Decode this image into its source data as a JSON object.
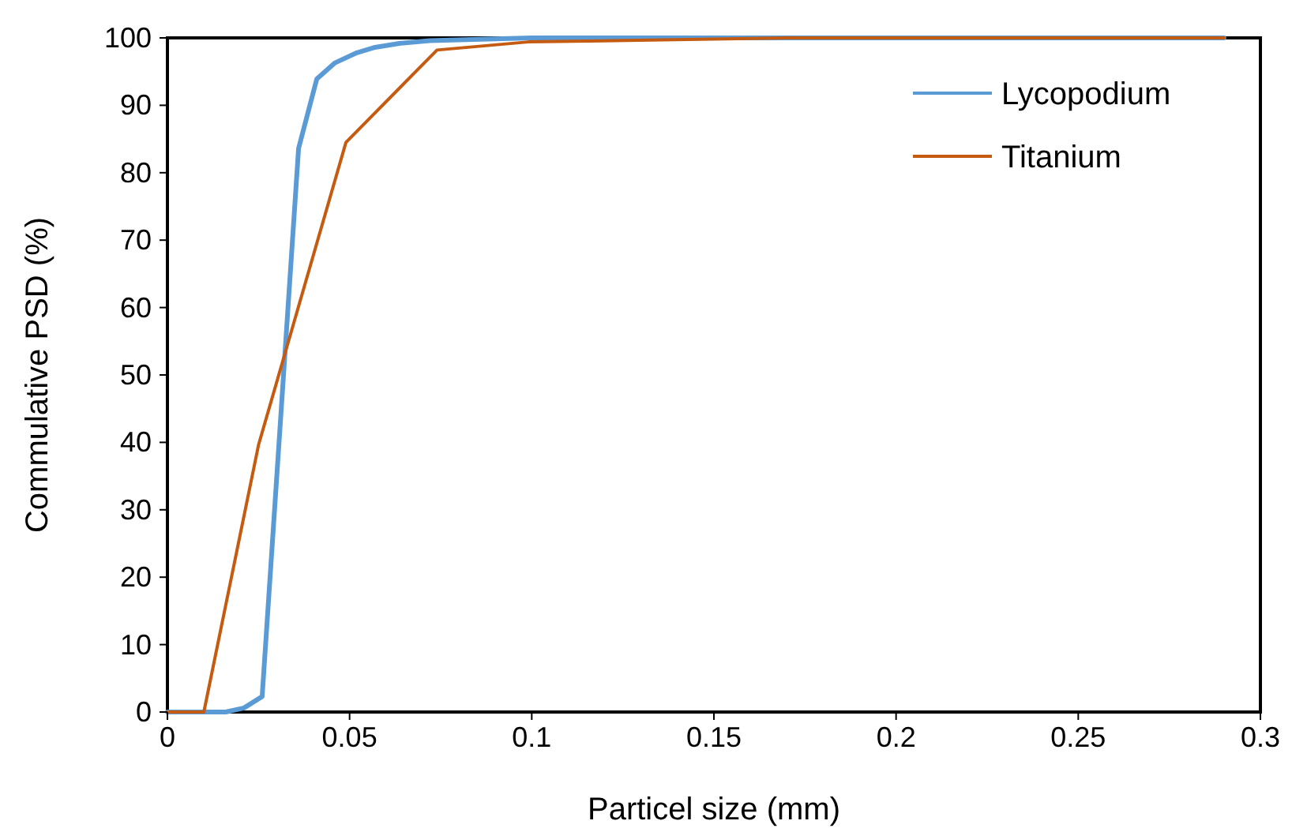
{
  "chart_data": {
    "type": "line",
    "xlabel": "Particel size (mm)",
    "ylabel": "Commulative PSD (%)",
    "xlim": [
      0,
      0.3
    ],
    "ylim": [
      0,
      100
    ],
    "xticks": [
      0,
      0.05,
      0.1,
      0.15,
      0.2,
      0.25,
      0.3
    ],
    "yticks": [
      0,
      10,
      20,
      30,
      40,
      50,
      60,
      70,
      80,
      90,
      100
    ],
    "grid": false,
    "legend": "top right",
    "marker": "none",
    "line_style": "solid",
    "series": [
      {
        "name": "Lycopodium",
        "color": "#5b9bd5",
        "x": [
          0,
          0.016,
          0.021,
          0.026,
          0.036,
          0.041,
          0.046,
          0.052,
          0.057,
          0.064,
          0.072,
          0.1,
          0.29
        ],
        "values": [
          0,
          0,
          0.6,
          2.3,
          83.6,
          93.9,
          96.3,
          97.8,
          98.6,
          99.2,
          99.6,
          100,
          100
        ]
      },
      {
        "name": "Titanium",
        "color": "#c55a11",
        "x": [
          0,
          0.01,
          0.025,
          0.049,
          0.074,
          0.099,
          0.17,
          0.29
        ],
        "values": [
          0,
          0,
          39.6,
          84.5,
          98.2,
          99.4,
          100,
          100
        ]
      }
    ]
  }
}
